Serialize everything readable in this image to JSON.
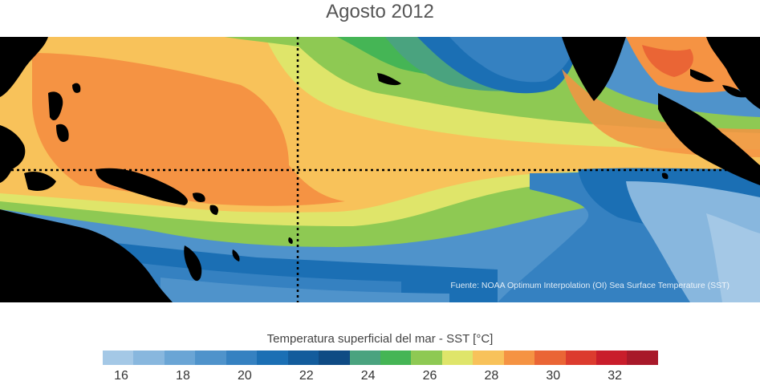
{
  "title": "Agosto 2012",
  "source_note": "Fuente: NOAA Optimum Interpolation (OI) Sea Surface Temperature (SST)",
  "legend": {
    "label": "Temperatura superficial del mar - SST  [°C]",
    "colors": [
      "#a4c8e6",
      "#88b7de",
      "#6aa5d5",
      "#4f93cb",
      "#3581c1",
      "#1b6fb4",
      "#135c9c",
      "#0f4b84",
      "#4aa37f",
      "#45b555",
      "#8ec953",
      "#dfe56a",
      "#f8c25a",
      "#f59343",
      "#ea6535",
      "#dc3b2e",
      "#c91d2b",
      "#a8192a"
    ],
    "ticks": [
      "16",
      "18",
      "20",
      "22",
      "24",
      "26",
      "28",
      "30",
      "32"
    ]
  }
}
